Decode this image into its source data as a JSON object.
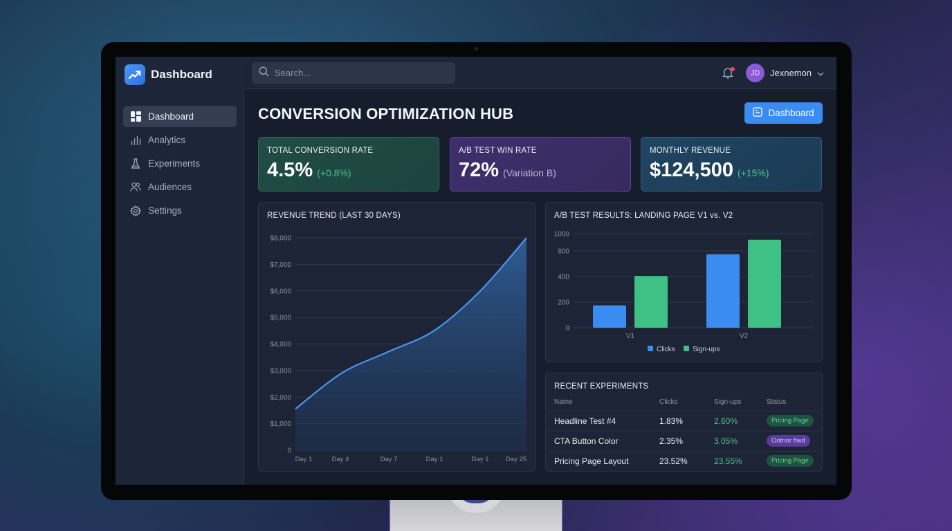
{
  "sidebar": {
    "brand": "Dashboard",
    "items": [
      {
        "label": "Dashboard",
        "icon": "grid-icon",
        "active": true
      },
      {
        "label": "Analytics",
        "icon": "bar-chart-icon",
        "active": false
      },
      {
        "label": "Experiments",
        "icon": "flask-icon",
        "active": false
      },
      {
        "label": "Audiences",
        "icon": "users-icon",
        "active": false
      },
      {
        "label": "Settings",
        "icon": "gear-icon",
        "active": false
      }
    ]
  },
  "topbar": {
    "search_placeholder": "Search...",
    "notification_dot": true,
    "user": {
      "initials": "JD",
      "name": "Jexnemon"
    }
  },
  "header": {
    "title": "CONVERSION OPTIMIZATION HUB",
    "button_label": "Dashboard"
  },
  "kpis": [
    {
      "label": "TOTAL CONVERSION RATE",
      "value": "4.5%",
      "delta": "(+0.8%)"
    },
    {
      "label": "A/B TEST WIN RATE",
      "value": "72%",
      "delta": "(Variation B)"
    },
    {
      "label": "MONTHLY REVENUE",
      "value": "$124,500",
      "delta": "(+15%)"
    }
  ],
  "revenue_chart": {
    "title": "REVENUE TREND (LAST 30 DAYS)",
    "y_ticks": [
      "$8,000",
      "$7,000",
      "$6,000",
      "$5,000",
      "$4,000",
      "$3,000",
      "$2,000",
      "$1,000",
      "0"
    ],
    "x_ticks": [
      "Day 1",
      "Day 4",
      "Day 7",
      "Day 1",
      "Day 1",
      "Day 25"
    ]
  },
  "ab_chart": {
    "title": "A/B TEST RESULTS: LANDING PAGE V1 vs. V2",
    "y_ticks": [
      "1000",
      "800",
      "400",
      "200",
      "0"
    ],
    "categories": [
      "V1",
      "V2"
    ],
    "legend": [
      "Clicks",
      "Sign-ups"
    ]
  },
  "experiments": {
    "title": "RECENT EXPERIMENTS",
    "columns": [
      "Name",
      "Clicks",
      "Sign-ups",
      "Status"
    ],
    "rows": [
      {
        "name": "Headline Test #4",
        "clicks": "1.83%",
        "signups": "2.60%",
        "status": "Pricing Page",
        "status_color": "green"
      },
      {
        "name": "CTA Button Color",
        "clicks": "2.35%",
        "signups": "3.05%",
        "status": "Ootnor fiwd",
        "status_color": "purple"
      },
      {
        "name": "Pricing Page Layout",
        "clicks": "23.52%",
        "signups": "23.55%",
        "status": "Pricing Page",
        "status_color": "green"
      }
    ]
  },
  "colors": {
    "accent": "#3b8cf0",
    "line": "#4a95ec",
    "clicks": "#3b8cf0",
    "signups": "#3fc084",
    "positive": "#4cc488"
  },
  "chart_data": [
    {
      "type": "area",
      "title": "REVENUE TREND (LAST 30 DAYS)",
      "xlabel": "",
      "ylabel": "",
      "x": [
        "Day 1",
        "Day 4",
        "Day 7",
        "Day 1",
        "Day 1",
        "Day 25"
      ],
      "values": [
        1550,
        2900,
        3700,
        4500,
        6000,
        8000
      ],
      "ylim": [
        0,
        8000
      ],
      "y_ticks": [
        "$8,000",
        "$7,000",
        "$6,000",
        "$5,000",
        "$4,000",
        "$3,000",
        "$2,000",
        "$1,000",
        "0"
      ],
      "grid": true,
      "legend": "none"
    },
    {
      "type": "bar",
      "title": "A/B TEST RESULTS: LANDING PAGE V1 vs. V2",
      "categories": [
        "V1",
        "V2"
      ],
      "series": [
        {
          "name": "Clicks",
          "values": [
            175,
            750
          ]
        },
        {
          "name": "Sign-ups",
          "values": [
            410,
            930
          ]
        }
      ],
      "y_ticks": [
        "0",
        "200",
        "400",
        "800",
        "1000"
      ],
      "ylim": [
        0,
        1000
      ],
      "grid": true,
      "legend": "bottom"
    }
  ]
}
